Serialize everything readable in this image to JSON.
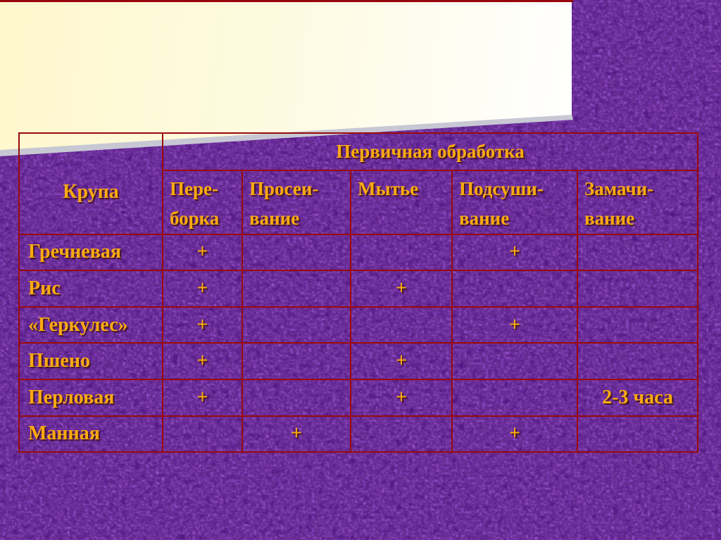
{
  "slide": {
    "background_color": "#4a0e8e",
    "accent_bar_color": "#97060c",
    "banner_gradient_start": "#fff8cd",
    "banner_gradient_end": "#ffffff",
    "table_border_color": "#9a0a0a",
    "text_color": "#fbaa0e"
  },
  "table": {
    "corner_label": "Крупа",
    "group_header": "Первичная обработка",
    "columns": [
      "Пере-\nборка",
      "Просеи-\nвание",
      "Мытье",
      "Подсуши-\nвание",
      "Замачи-\nвание"
    ],
    "rows": [
      {
        "label": "Гречневая",
        "cells": [
          "+",
          "",
          "",
          "+",
          ""
        ]
      },
      {
        "label": "Рис",
        "cells": [
          "+",
          "",
          "+",
          "",
          ""
        ]
      },
      {
        "label": "«Геркулес»",
        "cells": [
          "+",
          "",
          "",
          "+",
          ""
        ]
      },
      {
        "label": "Пшено",
        "cells": [
          "+",
          "",
          "+",
          "",
          ""
        ]
      },
      {
        "label": "Перловая",
        "cells": [
          "+",
          "",
          "+",
          "",
          "2-3 часа"
        ]
      },
      {
        "label": "Манная",
        "cells": [
          "",
          "+",
          "",
          "+",
          ""
        ]
      }
    ]
  }
}
